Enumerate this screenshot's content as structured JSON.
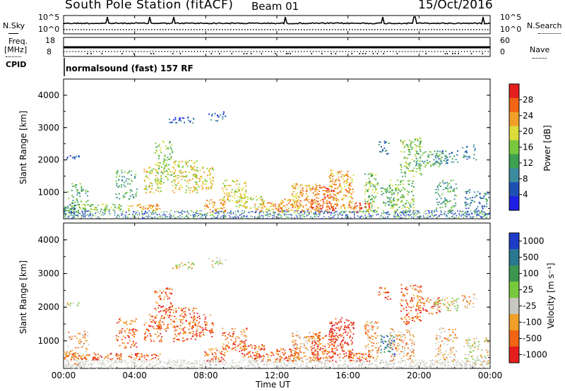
{
  "header": {
    "station": "South Pole Station (fitACF)",
    "beam": "Beam 01",
    "date": "15/Oct/2016"
  },
  "strip_panels": {
    "nsky_label": "N.Sky",
    "nsky_ticks": [
      "10^5",
      "10^0"
    ],
    "nsearch_label": "N.Search",
    "nsearch_ticks": [
      "10^5",
      "10^0"
    ],
    "freq_label": "Freq.",
    "freq_unit": "[MHz]",
    "freq_ticks": [
      "18",
      "8"
    ],
    "nave_label": "Nave",
    "nave_ticks": [
      "60",
      "0"
    ],
    "cpid_label": "CPID",
    "cpid_text": "normalsound (fast) 157 RF"
  },
  "colors": {
    "power_scale": [
      "#1e1ee6",
      "#1e50b4",
      "#3c8ca0",
      "#3ca050",
      "#78c83c",
      "#dcdc3c",
      "#f0a028",
      "#f06414",
      "#e61e1e"
    ],
    "velocity_scale": [
      "#1e3cc8",
      "#287890",
      "#3c9650",
      "#78c83c",
      "#c8c8c0",
      "#f0a028",
      "#f06414",
      "#e61e1e"
    ]
  },
  "chart_data": [
    {
      "type": "heatmap",
      "name": "power",
      "ylabel": "Slant Range [km]",
      "yticks": [
        "1000",
        "2000",
        "3000",
        "4000"
      ],
      "ylim": [
        180,
        4500
      ],
      "xlim": [
        "00:00",
        "24:00"
      ],
      "colorbar_label": "Power [dB]",
      "colorbar_ticks": [
        "4",
        "8",
        "12",
        "16",
        "20",
        "24",
        "28"
      ],
      "colorbar_range": [
        0,
        32
      ]
    },
    {
      "type": "heatmap",
      "name": "velocity",
      "ylabel": "Slant Range [km]",
      "yticks": [
        "1000",
        "2000",
        "3000",
        "4000"
      ],
      "ylim": [
        180,
        4500
      ],
      "xlim": [
        "00:00",
        "24:00"
      ],
      "xticks": [
        "00:00",
        "04:00",
        "08:00",
        "12:00",
        "16:00",
        "20:00",
        "00:00"
      ],
      "xlabel": "Time UT",
      "colorbar_label": "Velocity [m s⁻¹]",
      "colorbar_ticks": [
        "1000",
        "500",
        "100",
        "25",
        "-25",
        "-100",
        "-500",
        "-1000"
      ]
    }
  ]
}
